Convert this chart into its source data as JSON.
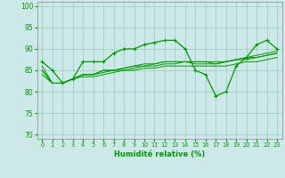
{
  "title": "",
  "xlabel": "Humidité relative (%)",
  "ylabel": "",
  "background_color": "#cce8e8",
  "grid_color": "#99ccbb",
  "line_color": "#009900",
  "xlim": [
    -0.5,
    23.5
  ],
  "ylim": [
    69,
    101
  ],
  "yticks": [
    70,
    75,
    80,
    85,
    90,
    95,
    100
  ],
  "xticks": [
    0,
    1,
    2,
    3,
    4,
    5,
    6,
    7,
    8,
    9,
    10,
    11,
    12,
    13,
    14,
    15,
    16,
    17,
    18,
    19,
    20,
    21,
    22,
    23
  ],
  "series_main": [
    87,
    85,
    82,
    83,
    87,
    87,
    87,
    89,
    90,
    90,
    91,
    91.5,
    92,
    92,
    90,
    85,
    84,
    79,
    80,
    86,
    88,
    91,
    92,
    90
  ],
  "series_lines": [
    [
      86,
      82,
      82,
      83,
      84,
      84,
      85,
      85,
      85.5,
      86,
      86.5,
      86.5,
      87,
      87,
      87,
      87,
      87,
      87,
      87,
      87.5,
      88,
      88.5,
      89,
      89.5
    ],
    [
      85,
      82,
      82,
      83,
      84,
      84,
      85,
      85,
      85.5,
      86,
      86,
      86.5,
      87,
      87,
      87,
      87,
      87,
      86.5,
      87,
      87.5,
      88,
      88,
      88.5,
      89
    ],
    [
      85,
      82,
      82,
      83,
      84,
      84,
      84.5,
      85,
      85,
      85.5,
      86,
      86,
      86.5,
      86.5,
      87,
      86.5,
      86.5,
      86.5,
      87,
      87.5,
      87.5,
      88,
      88.5,
      89
    ],
    [
      84,
      82,
      82,
      83,
      83.5,
      83.5,
      84,
      84.5,
      85,
      85,
      85.5,
      85.5,
      86,
      86,
      86,
      86,
      86,
      86,
      86,
      86.5,
      87,
      87,
      87.5,
      88
    ]
  ]
}
